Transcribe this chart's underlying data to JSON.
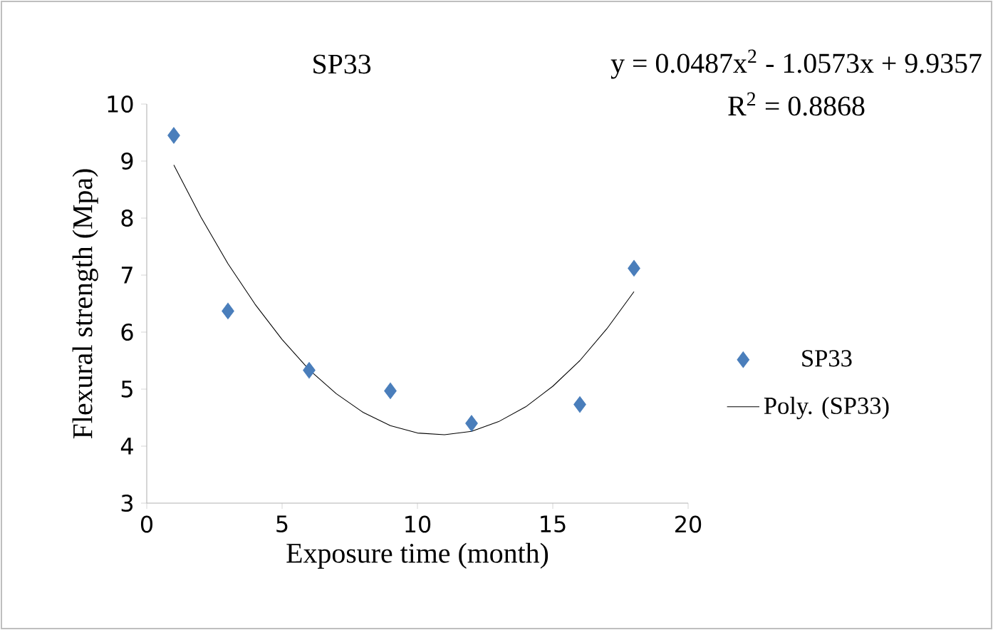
{
  "chart_data": {
    "type": "scatter",
    "title": "SP33",
    "xlabel": "Exposure time (month)",
    "ylabel": "Flexural strength (Mpa)",
    "annotations": [
      "y = 0.0487x$^{2}$ - 1.0573x + 9.9357",
      "R$^{2}$ = 0.8868"
    ],
    "xlim": [
      0,
      20
    ],
    "ylim": [
      3,
      10
    ],
    "xticks": [
      0,
      5,
      10,
      15,
      20
    ],
    "yticks": [
      3,
      4,
      5,
      6,
      7,
      8,
      9,
      10
    ],
    "legend": "right",
    "marker": "diamond",
    "series": [
      {
        "name": "SP33",
        "color": "#4a7ebb",
        "x": [
          1,
          3,
          6,
          9,
          12,
          16,
          18
        ],
        "values": [
          9.45,
          6.37,
          5.33,
          4.97,
          4.4,
          4.73,
          7.12
        ]
      },
      {
        "name": "Poly. (SP33)",
        "type": "line",
        "color": "#000000",
        "marker": "none",
        "line_style": "solid",
        "x": [
          1,
          2,
          3,
          4,
          5,
          6,
          7,
          8,
          9,
          10,
          11,
          12,
          13,
          14,
          15,
          16,
          17,
          18
        ],
        "values": [
          8.93,
          8.02,
          7.2,
          6.49,
          5.87,
          5.34,
          4.92,
          4.59,
          4.36,
          4.23,
          4.2,
          4.26,
          4.43,
          4.69,
          5.05,
          5.5,
          6.06,
          6.71
        ]
      }
    ]
  }
}
